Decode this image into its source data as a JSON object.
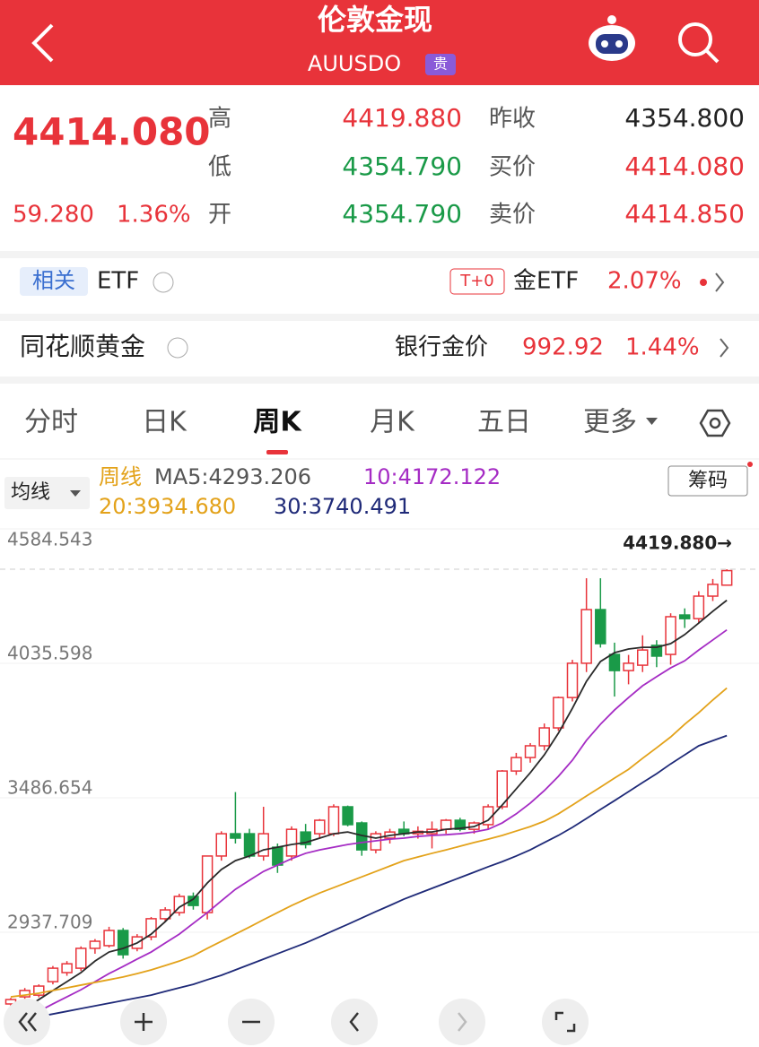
{
  "header": {
    "title": "伦敦金现",
    "code": "AUUSDO",
    "badge": "贵"
  },
  "quote": {
    "price": "4414.080",
    "change": "59.280",
    "change_pct": "1.36%",
    "fields": [
      {
        "label": "高",
        "value": "4419.880"
      },
      {
        "label": "低",
        "value": "4354.790"
      },
      {
        "label": "开",
        "value": "4354.790"
      },
      {
        "label": "昨收",
        "value": "4354.800"
      },
      {
        "label": "买价",
        "value": "4414.080"
      },
      {
        "label": "卖价",
        "value": "4414.850"
      }
    ]
  },
  "related": {
    "tag": "相关",
    "name": "ETF",
    "t0": "T+0",
    "fund": "金ETF",
    "pct": "2.07%"
  },
  "gold": {
    "name": "同花顺黄金",
    "bank_label": "银行金价",
    "bank_price": "992.92",
    "bank_pct": "1.44%"
  },
  "tabs": {
    "items": [
      "分时",
      "日K",
      "周K",
      "月K",
      "五日",
      "更多"
    ],
    "active": 2
  },
  "ma_bar": {
    "mode": "均线",
    "period": "周线",
    "chips": "筹码"
  },
  "chart_data": {
    "type": "candlestick",
    "ylim": [
      2388.765,
      4584.543
    ],
    "yticks": [
      4584.543,
      4035.598,
      3486.654,
      2937.709
    ],
    "grid": true,
    "up_color": "#e8333a",
    "down_color": "#1a9a48",
    "high_label": "4419.880→",
    "candles": {
      "open": [
        2645,
        2674,
        2681,
        2736,
        2773,
        2791,
        2872,
        2883,
        2945,
        2872,
        2919,
        2993,
        3018,
        3084,
        3018,
        3249,
        3340,
        3340,
        3249,
        3285,
        3249,
        3347,
        3340,
        3340,
        3450,
        3384,
        3274,
        3322,
        3358,
        3340,
        3340,
        3358,
        3395,
        3358,
        3377,
        3450,
        3596,
        3651,
        3699,
        3772,
        3896,
        4036,
        4255,
        4072,
        4006,
        4028,
        4109,
        4072,
        4233,
        4218,
        4310,
        4354.79
      ],
      "high": [
        2670,
        2710,
        2725,
        2800,
        2820,
        2880,
        2910,
        2960,
        2955,
        2930,
        3000,
        3040,
        3095,
        3100,
        3250,
        3350,
        3510,
        3360,
        3450,
        3300,
        3370,
        3380,
        3400,
        3460,
        3455,
        3390,
        3350,
        3360,
        3390,
        3370,
        3390,
        3400,
        3405,
        3390,
        3460,
        3600,
        3670,
        3710,
        3790,
        3900,
        4050,
        4383,
        4383,
        4120,
        4070,
        4150,
        4130,
        4240,
        4260,
        4330,
        4380,
        4419.88
      ],
      "low": [
        2630,
        2665,
        2672,
        2725,
        2760,
        2780,
        2850,
        2875,
        2830,
        2860,
        2905,
        2980,
        3005,
        3030,
        2990,
        3230,
        3300,
        3240,
        3230,
        3180,
        3230,
        3280,
        3320,
        3330,
        3370,
        3250,
        3260,
        3300,
        3330,
        3320,
        3280,
        3340,
        3350,
        3340,
        3360,
        3440,
        3580,
        3630,
        3680,
        3760,
        3880,
        4000,
        4100,
        3900,
        3950,
        4000,
        4020,
        4030,
        4180,
        4200,
        4290,
        4354.79
      ],
      "close": [
        2663,
        2700,
        2718,
        2791,
        2809,
        2872,
        2901,
        2945,
        2846,
        2919,
        2993,
        3029,
        3084,
        3047,
        3249,
        3340,
        3322,
        3249,
        3340,
        3212,
        3358,
        3296,
        3395,
        3450,
        3377,
        3274,
        3340,
        3347,
        3340,
        3350,
        3358,
        3395,
        3358,
        3384,
        3450,
        3596,
        3651,
        3699,
        3772,
        3896,
        4036,
        4255,
        4116,
        4006,
        4036,
        4090,
        4065,
        4226,
        4218,
        4310,
        4358,
        4414.08
      ]
    },
    "series": [
      {
        "name": "MA5:4293.206",
        "color": "#2a2a2a",
        "values": [
          2590,
          2626,
          2663,
          2700,
          2736,
          2773,
          2820,
          2857,
          2872,
          2894,
          2930,
          2981,
          3040,
          3073,
          3139,
          3194,
          3230,
          3249,
          3274,
          3285,
          3296,
          3304,
          3322,
          3340,
          3347,
          3333,
          3322,
          3333,
          3340,
          3347,
          3347,
          3358,
          3362,
          3369,
          3395,
          3457,
          3523,
          3589,
          3662,
          3750,
          3852,
          3962,
          4043,
          4079,
          4094,
          4101,
          4101,
          4116,
          4153,
          4200,
          4248,
          4293.206
        ]
      },
      {
        "name": "10:4172.122",
        "color": "#a52cc4",
        "values": [
          2564,
          2590,
          2615,
          2645,
          2674,
          2703,
          2736,
          2769,
          2798,
          2828,
          2857,
          2894,
          2930,
          2974,
          3018,
          3066,
          3113,
          3150,
          3186,
          3212,
          3238,
          3260,
          3274,
          3285,
          3296,
          3304,
          3311,
          3318,
          3322,
          3329,
          3333,
          3336,
          3340,
          3347,
          3358,
          3384,
          3421,
          3465,
          3516,
          3574,
          3640,
          3721,
          3787,
          3845,
          3896,
          3944,
          3981,
          4017,
          4046,
          4090,
          4131,
          4172.122
        ]
      },
      {
        "name": "20:3934.680",
        "color": "#e3a21a",
        "values": [
          2674,
          2681,
          2689,
          2700,
          2711,
          2722,
          2733,
          2744,
          2755,
          2769,
          2784,
          2802,
          2820,
          2842,
          2872,
          2901,
          2930,
          2959,
          2989,
          3018,
          3047,
          3073,
          3098,
          3120,
          3142,
          3164,
          3186,
          3208,
          3230,
          3245,
          3260,
          3274,
          3289,
          3304,
          3318,
          3333,
          3351,
          3369,
          3391,
          3421,
          3457,
          3494,
          3530,
          3567,
          3603,
          3648,
          3691,
          3735,
          3787,
          3834,
          3886,
          3934.68
        ]
      },
      {
        "name": "30:3740.491",
        "color": "#1f2a78",
        "values": [
          2571,
          2582,
          2593,
          2604,
          2615,
          2626,
          2637,
          2648,
          2659,
          2670,
          2681,
          2696,
          2711,
          2725,
          2744,
          2762,
          2784,
          2806,
          2828,
          2850,
          2872,
          2894,
          2919,
          2945,
          2970,
          2996,
          3022,
          3047,
          3073,
          3095,
          3117,
          3139,
          3161,
          3183,
          3205,
          3226,
          3249,
          3274,
          3304,
          3333,
          3366,
          3402,
          3439,
          3475,
          3512,
          3549,
          3585,
          3625,
          3662,
          3699,
          3720,
          3740.491
        ]
      }
    ]
  }
}
